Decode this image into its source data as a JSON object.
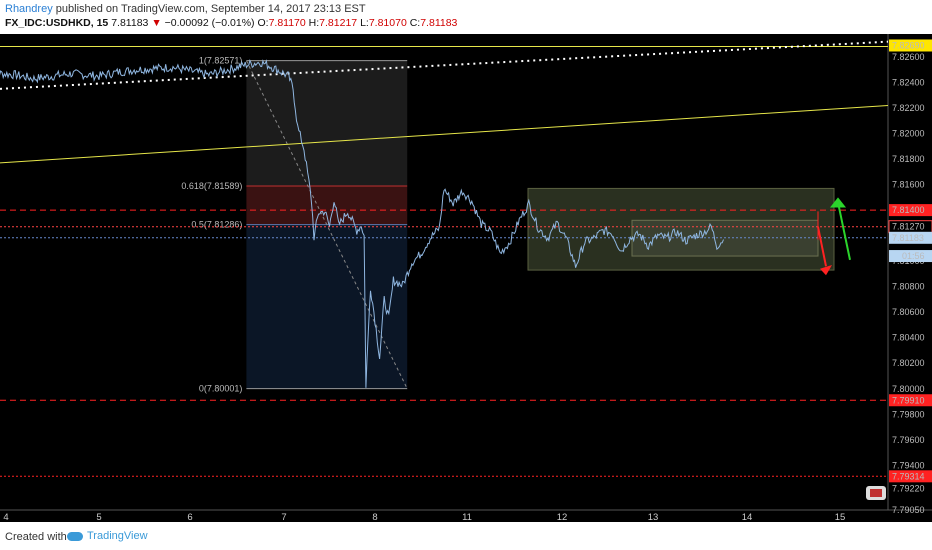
{
  "header": {
    "author": "Rhandrey",
    "published": "published on TradingView.com, September 14, 2017 23:13 EST",
    "symbol": "FX_IDC:USDHKD, 15",
    "last": "7.81183",
    "arrow": "▼",
    "change": "−0.00092 (−0.01%)",
    "ohlc_label_o": "O:",
    "ohlc_o": "7.81170",
    "ohlc_label_h": "H:",
    "ohlc_h": "7.81217",
    "ohlc_label_l": "L:",
    "ohlc_l": "7.81070",
    "ohlc_label_c": "C:",
    "ohlc_c": "7.81183"
  },
  "footer": {
    "created_with": "Created with",
    "brand": "TradingView"
  },
  "colors": {
    "background": "#000000",
    "price_line": "#8fb6e0",
    "trendline": "#e6e64a",
    "red_level": "#ff2222",
    "green_arrow": "#2bd52b",
    "fib_upper": "#3a1212",
    "fib_lower": "#0b1626"
  },
  "chart_data": {
    "type": "line",
    "symbol": "FX_IDC:USDHKD",
    "interval": "15",
    "x_ticks": [
      "4",
      "5",
      "6",
      "7",
      "8",
      "11",
      "12",
      "13",
      "14",
      "15"
    ],
    "y_ticks": [
      "7.82600",
      "7.82400",
      "7.82200",
      "7.82000",
      "7.81800",
      "7.81600",
      "7.81200",
      "7.81000",
      "7.80800",
      "7.80600",
      "7.80400",
      "7.80200",
      "7.80000",
      "7.79800",
      "7.79600",
      "7.79400",
      "7.79220",
      "7.79050"
    ],
    "ylim": [
      7.7905,
      7.8278
    ],
    "price_badges": [
      {
        "label": "7.82690",
        "value": 7.8269,
        "style": "yellow"
      },
      {
        "label": "7.81400",
        "value": 7.814,
        "style": "red"
      },
      {
        "label": "7.81270",
        "value": 7.8127,
        "style": "red-outline"
      },
      {
        "label": "7.81183",
        "value": 7.81183,
        "style": "current"
      },
      {
        "label": "01:56",
        "value": 7.8104,
        "style": "timer"
      },
      {
        "label": "7.79910",
        "value": 7.7991,
        "style": "red"
      },
      {
        "label": "7.79314",
        "value": 7.79314,
        "style": "red"
      }
    ],
    "fibonacci": [
      {
        "label": "1(7.82571)",
        "value": 7.82571
      },
      {
        "label": "0.618(7.81589)",
        "value": 7.81589
      },
      {
        "label": "0.5(7.81286)",
        "value": 7.81286
      },
      {
        "label": "0(7.80001)",
        "value": 7.80001
      }
    ],
    "horizontal_levels": [
      7.814,
      7.8127,
      7.81183,
      7.7991,
      7.79314,
      7.8269
    ],
    "series": [
      {
        "values": [
          [
            3.8,
            7.8248
          ],
          [
            4.1,
            7.8246
          ],
          [
            4.3,
            7.8243
          ],
          [
            4.5,
            7.8245
          ],
          [
            4.7,
            7.8247
          ],
          [
            5.0,
            7.8245
          ],
          [
            5.2,
            7.8248
          ],
          [
            5.4,
            7.825
          ],
          [
            5.6,
            7.8251
          ],
          [
            5.8,
            7.8252
          ],
          [
            6.0,
            7.8249
          ],
          [
            6.2,
            7.8246
          ],
          [
            6.4,
            7.825
          ],
          [
            6.6,
            7.8254
          ],
          [
            6.75,
            7.8256
          ],
          [
            6.85,
            7.8253
          ],
          [
            6.95,
            7.8249
          ],
          [
            7.05,
            7.8245
          ],
          [
            7.1,
            7.8235
          ],
          [
            7.15,
            7.8205
          ],
          [
            7.22,
            7.8188
          ],
          [
            7.3,
            7.8149
          ],
          [
            7.33,
            7.8119
          ],
          [
            7.38,
            7.8138
          ],
          [
            7.45,
            7.8139
          ],
          [
            7.5,
            7.8127
          ],
          [
            7.55,
            7.8149
          ],
          [
            7.6,
            7.8128
          ],
          [
            7.7,
            7.8139
          ],
          [
            7.8,
            7.8124
          ],
          [
            7.85,
            7.8128
          ],
          [
            7.88,
            7.812
          ],
          [
            7.9,
            7.8003
          ],
          [
            7.95,
            7.808
          ],
          [
            8.0,
            7.8054
          ],
          [
            8.05,
            7.8025
          ],
          [
            8.1,
            7.807
          ],
          [
            8.15,
            7.8055
          ],
          [
            8.2,
            7.8085
          ],
          [
            8.3,
            7.8081
          ],
          [
            8.4,
            7.8099
          ],
          [
            8.5,
            7.8106
          ],
          [
            8.6,
            7.8118
          ],
          [
            8.7,
            7.8126
          ],
          [
            8.75,
            7.8157
          ],
          [
            8.85,
            7.8145
          ],
          [
            8.95,
            7.8155
          ],
          [
            9.05,
            7.8147
          ],
          [
            9.15,
            7.8129
          ],
          [
            9.25,
            7.8123
          ],
          [
            9.35,
            7.8106
          ],
          [
            9.45,
            7.8115
          ],
          [
            9.55,
            7.8132
          ],
          [
            9.65,
            7.8145
          ],
          [
            9.75,
            7.8126
          ],
          [
            9.85,
            7.8118
          ],
          [
            9.95,
            7.813
          ],
          [
            10.05,
            7.8117
          ],
          [
            10.15,
            7.8096
          ],
          [
            10.25,
            7.8115
          ],
          [
            10.35,
            7.8118
          ],
          [
            10.45,
            7.8124
          ],
          [
            10.55,
            7.8122
          ],
          [
            10.65,
            7.8108
          ],
          [
            10.75,
            7.8118
          ],
          [
            10.85,
            7.8121
          ],
          [
            10.95,
            7.8112
          ],
          [
            11.05,
            7.812
          ],
          [
            11.15,
            7.8118
          ],
          [
            11.25,
            7.8123
          ],
          [
            11.35,
            7.8116
          ],
          [
            11.45,
            7.812
          ],
          [
            11.55,
            7.8123
          ],
          [
            11.62,
            7.8127
          ],
          [
            11.68,
            7.8112
          ],
          [
            11.75,
            7.8117
          ]
        ]
      }
    ]
  }
}
